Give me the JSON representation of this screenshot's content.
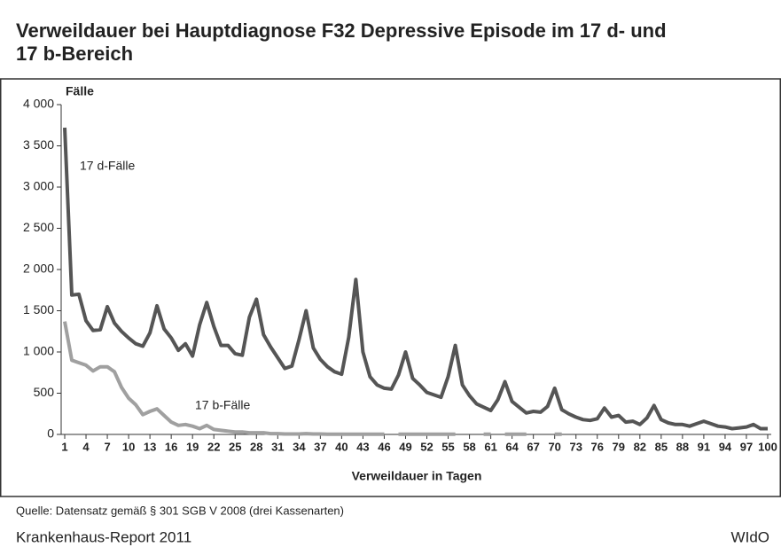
{
  "chart_data": {
    "type": "line",
    "title": "Verweildauer bei Hauptdiagnose F32 Depressive Episode im 17 d- und 17 b-Bereich",
    "y_label": "Fälle",
    "x_label": "Verweildauer in Tagen",
    "source": "Quelle: Datensatz gemäß § 301 SGB V 2008 (drei Kassenarten)",
    "footer_left": "Krankenhaus-Report 2011",
    "footer_right": "WIdO",
    "x": [
      1,
      2,
      3,
      4,
      5,
      6,
      7,
      8,
      9,
      10,
      11,
      12,
      13,
      14,
      15,
      16,
      17,
      18,
      19,
      20,
      21,
      22,
      23,
      24,
      25,
      26,
      27,
      28,
      29,
      30,
      31,
      32,
      33,
      34,
      35,
      36,
      37,
      38,
      39,
      40,
      41,
      42,
      43,
      44,
      45,
      46,
      47,
      48,
      49,
      50,
      51,
      52,
      53,
      54,
      55,
      56,
      57,
      58,
      59,
      60,
      61,
      62,
      63,
      64,
      65,
      66,
      67,
      68,
      69,
      70,
      71,
      72,
      73,
      74,
      75,
      76,
      77,
      78,
      79,
      80,
      81,
      82,
      83,
      84,
      85,
      86,
      87,
      88,
      89,
      90,
      91,
      92,
      93,
      94,
      95,
      96,
      97,
      98,
      99,
      100
    ],
    "series": [
      {
        "name": "17 d-Fälle",
        "color": "#555555",
        "values": [
          3720,
          1690,
          1700,
          1380,
          1260,
          1270,
          1550,
          1350,
          1250,
          1170,
          1100,
          1070,
          1230,
          1560,
          1280,
          1170,
          1020,
          1100,
          950,
          1330,
          1600,
          1310,
          1080,
          1080,
          980,
          960,
          1420,
          1640,
          1210,
          1060,
          930,
          800,
          830,
          1150,
          1500,
          1050,
          910,
          820,
          760,
          730,
          1180,
          1880,
          1000,
          700,
          600,
          560,
          550,
          720,
          1000,
          680,
          600,
          510,
          480,
          450,
          700,
          1080,
          600,
          470,
          370,
          330,
          290,
          420,
          640,
          400,
          330,
          260,
          280,
          270,
          340,
          560,
          300,
          250,
          210,
          180,
          170,
          190,
          320,
          210,
          230,
          150,
          160,
          120,
          200,
          350,
          180,
          140,
          120,
          120,
          100,
          130,
          160,
          130,
          100,
          90,
          70,
          80,
          90,
          120,
          70,
          70
        ]
      },
      {
        "name": "17 b-Fälle",
        "color": "#a0a0a0",
        "values": [
          1370,
          900,
          870,
          840,
          770,
          820,
          820,
          760,
          570,
          440,
          360,
          240,
          280,
          310,
          230,
          150,
          110,
          120,
          100,
          70,
          110,
          60,
          50,
          40,
          30,
          30,
          20,
          20,
          20,
          10,
          10,
          5,
          5,
          5,
          10,
          5,
          5,
          3,
          3,
          3,
          3,
          3,
          3,
          3,
          3,
          3,
          null,
          3,
          3,
          3,
          3,
          3,
          3,
          3,
          3,
          3,
          null,
          null,
          null,
          3,
          3,
          null,
          3,
          3,
          3,
          3,
          null,
          null,
          null,
          3,
          3,
          null,
          null,
          null,
          null,
          null,
          null,
          null,
          null,
          null,
          null,
          null,
          null,
          null,
          null,
          null,
          null,
          null,
          null,
          null,
          null,
          null,
          null,
          null,
          null,
          null,
          null,
          null,
          null,
          null
        ]
      }
    ],
    "xlim": [
      1,
      100
    ],
    "xticks": [
      1,
      4,
      7,
      10,
      13,
      16,
      19,
      22,
      25,
      28,
      31,
      34,
      37,
      40,
      43,
      46,
      49,
      52,
      55,
      58,
      61,
      64,
      67,
      70,
      73,
      76,
      79,
      82,
      85,
      88,
      91,
      94,
      97,
      100
    ],
    "ylim": [
      0,
      4000
    ],
    "yticks": [
      0,
      500,
      {
        "value": 1000,
        "label": "1 000"
      },
      {
        "value": 1500,
        "label": "1 500"
      },
      {
        "value": 2000,
        "label": "2 000"
      },
      {
        "value": 2500,
        "label": "2 500"
      },
      {
        "value": 3000,
        "label": "3 000"
      },
      {
        "value": 3500,
        "label": "3 500"
      },
      {
        "value": 4000,
        "label": "4 000"
      }
    ]
  }
}
